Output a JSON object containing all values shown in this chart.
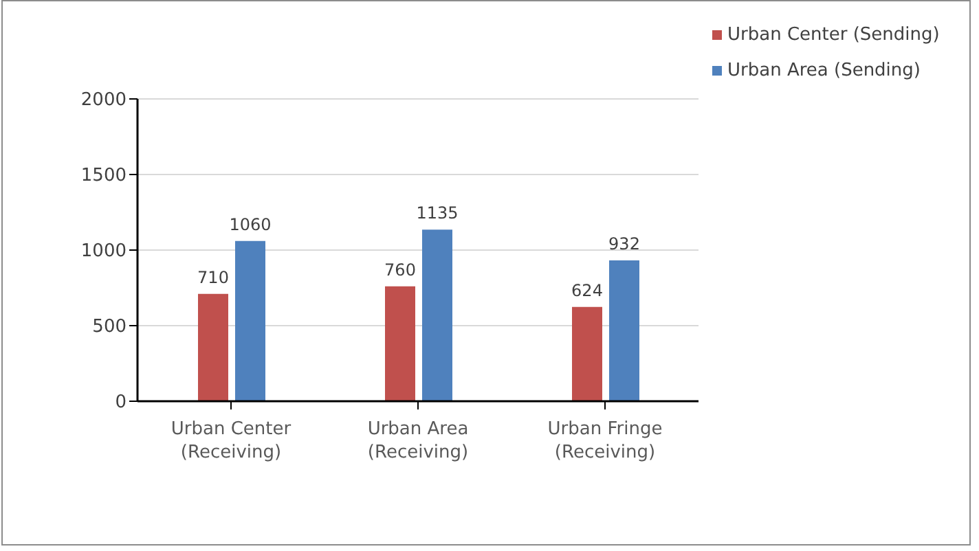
{
  "chart_data": {
    "type": "bar",
    "categories": [
      "Urban Center (Receiving)",
      "Urban Area (Receiving)",
      "Urban Fringe (Receiving)"
    ],
    "series": [
      {
        "name": "Urban Center (Sending)",
        "color": "#c0504d",
        "values": [
          710,
          760,
          624
        ]
      },
      {
        "name": "Urban Area (Sending)",
        "color": "#4f81bd",
        "values": [
          1060,
          1135,
          932
        ]
      }
    ],
    "ylim": [
      0,
      2000
    ],
    "yticks": [
      0,
      500,
      1000,
      1500,
      2000
    ],
    "grid": "y",
    "legend": "top right",
    "data_labels": true
  }
}
